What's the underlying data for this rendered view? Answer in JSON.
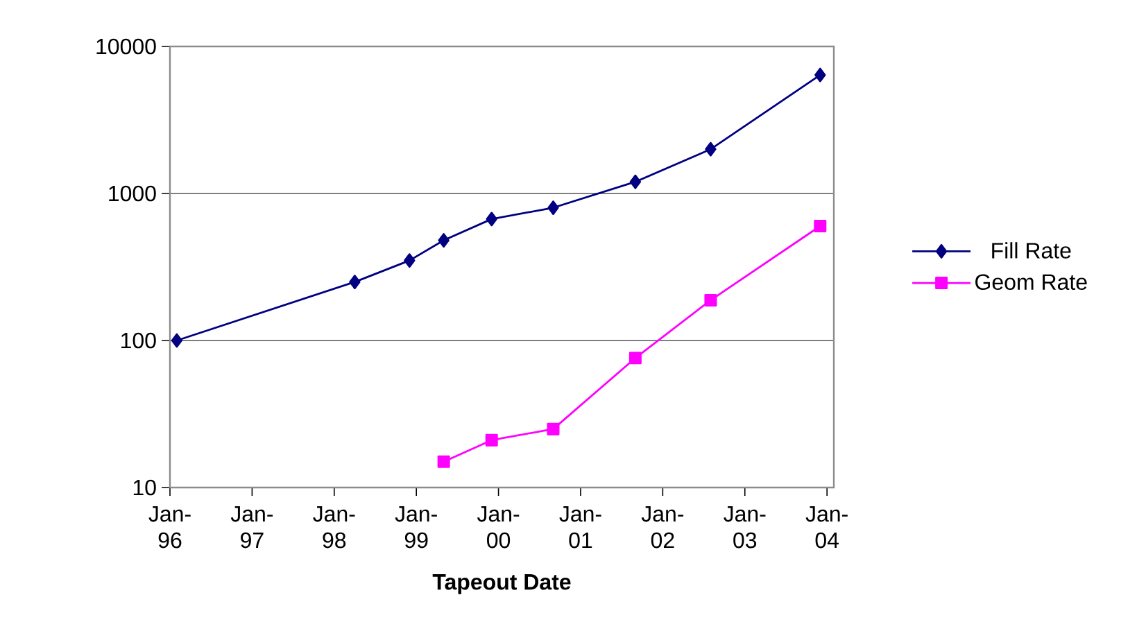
{
  "chart_data": {
    "type": "line",
    "xlabel": "Tapeout Date",
    "log": "y",
    "grid": "y",
    "legend": "right",
    "xlim": [
      "1996-01",
      "2004-02"
    ],
    "ylim": [
      10,
      10000
    ],
    "yticks": [
      10,
      100,
      1000,
      10000
    ],
    "xticks": [
      {
        "value": "1996-01",
        "label": "Jan-96"
      },
      {
        "value": "1997-01",
        "label": "Jan-97"
      },
      {
        "value": "1998-01",
        "label": "Jan-98"
      },
      {
        "value": "1999-01",
        "label": "Jan-99"
      },
      {
        "value": "2000-01",
        "label": "Jan-00"
      },
      {
        "value": "2001-01",
        "label": "Jan-01"
      },
      {
        "value": "2002-01",
        "label": "Jan-02"
      },
      {
        "value": "2003-01",
        "label": "Jan-03"
      },
      {
        "value": "2004-01",
        "label": "Jan-04"
      }
    ],
    "series": [
      {
        "name": "Fill Rate",
        "color": "#000080",
        "marker": "diamond",
        "x": [
          "1996-02",
          "1998-04",
          "1998-12",
          "1999-05",
          "1999-12",
          "2000-09",
          "2001-09",
          "2002-08",
          "2003-12"
        ],
        "values": [
          100,
          250,
          350,
          480,
          670,
          800,
          1200,
          2000,
          6400
        ]
      },
      {
        "name": "Geom Rate",
        "color": "#ff00ff",
        "marker": "square",
        "x": [
          "1999-05",
          "1999-12",
          "2000-09",
          "2001-09",
          "2002-08",
          "2003-12"
        ],
        "values": [
          15,
          21,
          25,
          76,
          188,
          600
        ]
      }
    ]
  }
}
